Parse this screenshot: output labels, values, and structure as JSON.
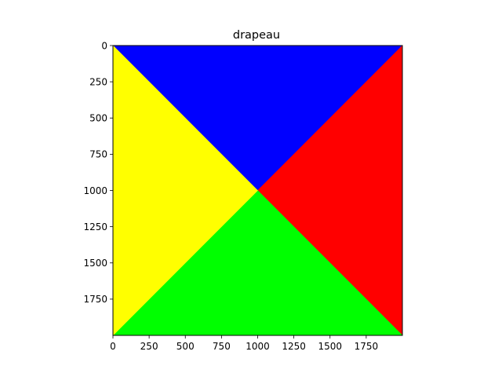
{
  "chart_data": {
    "type": "heatmap",
    "title": "drapeau",
    "xlabel": "",
    "ylabel": "",
    "xlim": [
      0,
      2000
    ],
    "ylim": [
      2000,
      0
    ],
    "y_inverted": true,
    "grid": false,
    "x_ticks": [
      0,
      250,
      500,
      750,
      1000,
      1250,
      1500,
      1750
    ],
    "x_tick_labels": [
      "0",
      "250",
      "500",
      "750",
      "1000",
      "1250",
      "1500",
      "1750"
    ],
    "y_ticks": [
      0,
      250,
      500,
      750,
      1000,
      1250,
      1500,
      1750
    ],
    "y_tick_labels": [
      "0",
      "250",
      "500",
      "750",
      "1000",
      "1250",
      "1500",
      "1750"
    ],
    "regions": [
      {
        "name": "top",
        "color": "#0000ff",
        "points": [
          [
            0,
            0
          ],
          [
            2000,
            0
          ],
          [
            1000,
            1000
          ]
        ]
      },
      {
        "name": "right",
        "color": "#ff0000",
        "points": [
          [
            2000,
            0
          ],
          [
            2000,
            2000
          ],
          [
            1000,
            1000
          ]
        ]
      },
      {
        "name": "bottom",
        "color": "#00ff00",
        "points": [
          [
            0,
            2000
          ],
          [
            2000,
            2000
          ],
          [
            1000,
            1000
          ]
        ]
      },
      {
        "name": "left",
        "color": "#ffff00",
        "points": [
          [
            0,
            0
          ],
          [
            0,
            2000
          ],
          [
            1000,
            1000
          ]
        ]
      }
    ]
  }
}
